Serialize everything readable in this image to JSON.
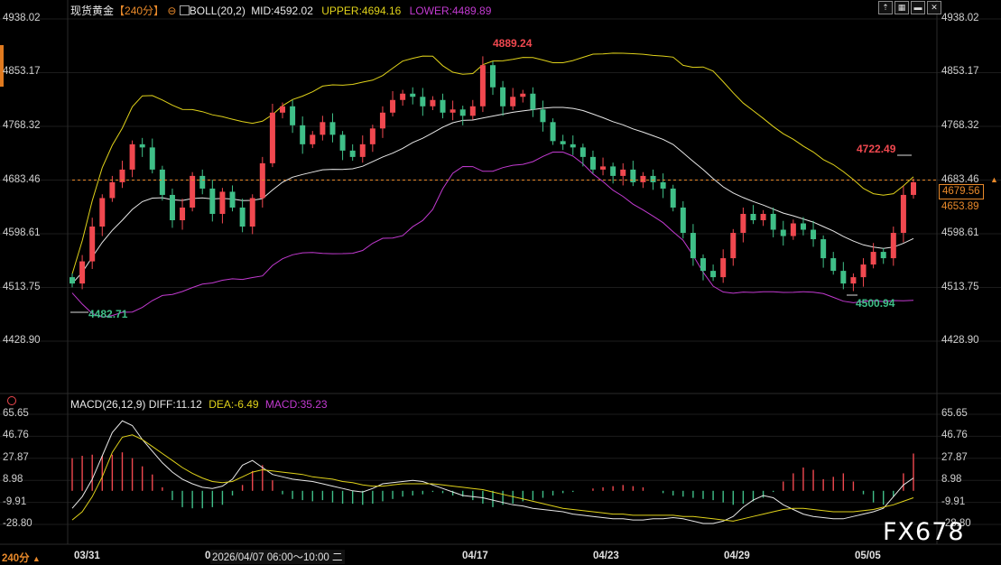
{
  "header": {
    "symbol": "现货黄金",
    "period": "【240分】",
    "indicator": "BOLL(20,2)",
    "mid_label": "MID:4592.02",
    "upper_label": "UPPER:4694.16",
    "lower_label": "LOWER:4489.89"
  },
  "macd_header": {
    "indicator": "MACD(26,12,9)",
    "diff_label": "DIFF:11.12",
    "dea_label": "DEA:-6.49",
    "macd_label": "MACD:35.23"
  },
  "colors": {
    "up": "#f0484f",
    "down": "#3fbf88",
    "mid": "#e8e8e8",
    "upper": "#e0d21a",
    "lower": "#c23ad0",
    "diff": "#e8e8e8",
    "dea": "#e0d21a",
    "current": "#e8892a"
  },
  "price_axis": [
    "4938.02",
    "4853.17",
    "4768.32",
    "4683.46",
    "4598.61",
    "4513.75",
    "4428.90"
  ],
  "macd_axis": [
    "65.65",
    "46.76",
    "27.87",
    "8.98",
    "-9.91",
    "-28.80"
  ],
  "current_price": "4679.56",
  "current_price_axis": "4683.46",
  "secondary_price": "4653.89",
  "x_labels": [
    "03/31",
    "04",
    "04/17",
    "04/23",
    "04/29",
    "05/05"
  ],
  "cursor_label": "2026/04/07 06:00～10:00 二",
  "period_tab": "240分",
  "watermark": "FX678",
  "annotations": {
    "high": "4889.24",
    "low_first": "4482.71",
    "recent_high": "4722.49",
    "recent_low": "4500.94"
  },
  "chart_data": {
    "type": "candlestick",
    "price_range": [
      4428.9,
      4938.02
    ],
    "macd_range": [
      -28.8,
      65.65
    ],
    "close": [
      4520,
      4555,
      4610,
      4655,
      4680,
      4700,
      4740,
      4735,
      4700,
      4660,
      4620,
      4640,
      4690,
      4670,
      4630,
      4665,
      4640,
      4610,
      4655,
      4710,
      4790,
      4800,
      4770,
      4740,
      4755,
      4775,
      4755,
      4730,
      4720,
      4740,
      4765,
      4790,
      4810,
      4820,
      4815,
      4800,
      4810,
      4790,
      4795,
      4785,
      4800,
      4865,
      4830,
      4800,
      4815,
      4820,
      4795,
      4775,
      4745,
      4740,
      4735,
      4720,
      4700,
      4705,
      4690,
      4700,
      4680,
      4690,
      4680,
      4670,
      4640,
      4600,
      4560,
      4540,
      4530,
      4560,
      4600,
      4630,
      4620,
      4630,
      4605,
      4595,
      4615,
      4605,
      4590,
      4560,
      4540,
      4520,
      4530,
      4550,
      4570,
      4560,
      4600,
      4660,
      4680
    ],
    "macd_hist": [
      28,
      30,
      31,
      30,
      31,
      33,
      28,
      21,
      14,
      3,
      -8,
      -14,
      -15,
      -15,
      -14,
      -12,
      -4,
      5,
      17,
      22,
      9,
      -3,
      -7,
      -8,
      -9,
      -8,
      -10,
      -11,
      -11,
      -12,
      -11,
      -9,
      -7,
      -5,
      -4,
      -3,
      -1,
      -2,
      -4,
      -5,
      -8,
      -11,
      -14,
      -12,
      -11,
      -9,
      -8,
      -6,
      -4,
      -2,
      -1,
      0,
      2,
      3,
      4,
      5,
      4,
      3,
      0,
      -2,
      -4,
      -5,
      -6,
      -7,
      -8,
      -10,
      -12,
      -11,
      -9,
      -6,
      -1,
      8,
      15,
      20,
      18,
      10,
      12,
      15,
      8,
      -3,
      -10,
      -12,
      -5,
      15,
      32
    ],
    "diff": [
      -15,
      -5,
      10,
      30,
      50,
      60,
      56,
      44,
      34,
      24,
      16,
      10,
      6,
      3,
      2,
      4,
      10,
      22,
      26,
      20,
      14,
      12,
      10,
      9,
      8,
      6,
      4,
      2,
      0,
      -1,
      2,
      6,
      7,
      8,
      9,
      8,
      5,
      2,
      -1,
      -4,
      -5,
      -6,
      -8,
      -10,
      -12,
      -13,
      -15,
      -16,
      -17,
      -18,
      -20,
      -21,
      -22,
      -23,
      -24,
      -24,
      -25,
      -25,
      -24,
      -24,
      -23,
      -24,
      -26,
      -28,
      -28,
      -26,
      -22,
      -14,
      -8,
      -4,
      -6,
      -12,
      -16,
      -20,
      -22,
      -23,
      -24,
      -24,
      -22,
      -20,
      -18,
      -15,
      -5,
      5,
      11
    ],
    "dea": [
      -25,
      -18,
      -5,
      12,
      33,
      46,
      48,
      44,
      38,
      32,
      26,
      20,
      15,
      11,
      8,
      7,
      8,
      12,
      16,
      18,
      17,
      16,
      15,
      14,
      12,
      11,
      10,
      8,
      7,
      5,
      4,
      4,
      5,
      6,
      6,
      6,
      6,
      5,
      4,
      3,
      2,
      1,
      -1,
      -3,
      -5,
      -7,
      -9,
      -11,
      -13,
      -15,
      -16,
      -17,
      -18,
      -19,
      -20,
      -20,
      -21,
      -21,
      -21,
      -21,
      -21,
      -22,
      -22,
      -23,
      -24,
      -25,
      -26,
      -24,
      -22,
      -20,
      -18,
      -16,
      -15,
      -15,
      -16,
      -17,
      -18,
      -18,
      -18,
      -17,
      -16,
      -14,
      -12,
      -9,
      -6
    ]
  }
}
